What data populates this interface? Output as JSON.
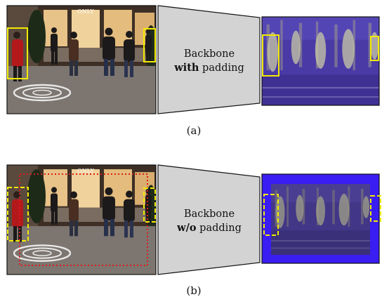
{
  "row_a": {
    "label_line1": "Backbone",
    "label_bold": "with",
    "label_rest": " padding",
    "caption": "(a)",
    "store_sign": "ONLY"
  },
  "row_b": {
    "label_line1": "Backbone",
    "label_bold": "w/o",
    "label_rest": " padding",
    "caption": "(b)",
    "store_sign": "ONLY"
  },
  "colors": {
    "detection_box": "#f2ea00",
    "crop_region": "#e11a1a",
    "padding_blue": "#3a1df2",
    "backbone_fill": "#d3d3d3"
  }
}
